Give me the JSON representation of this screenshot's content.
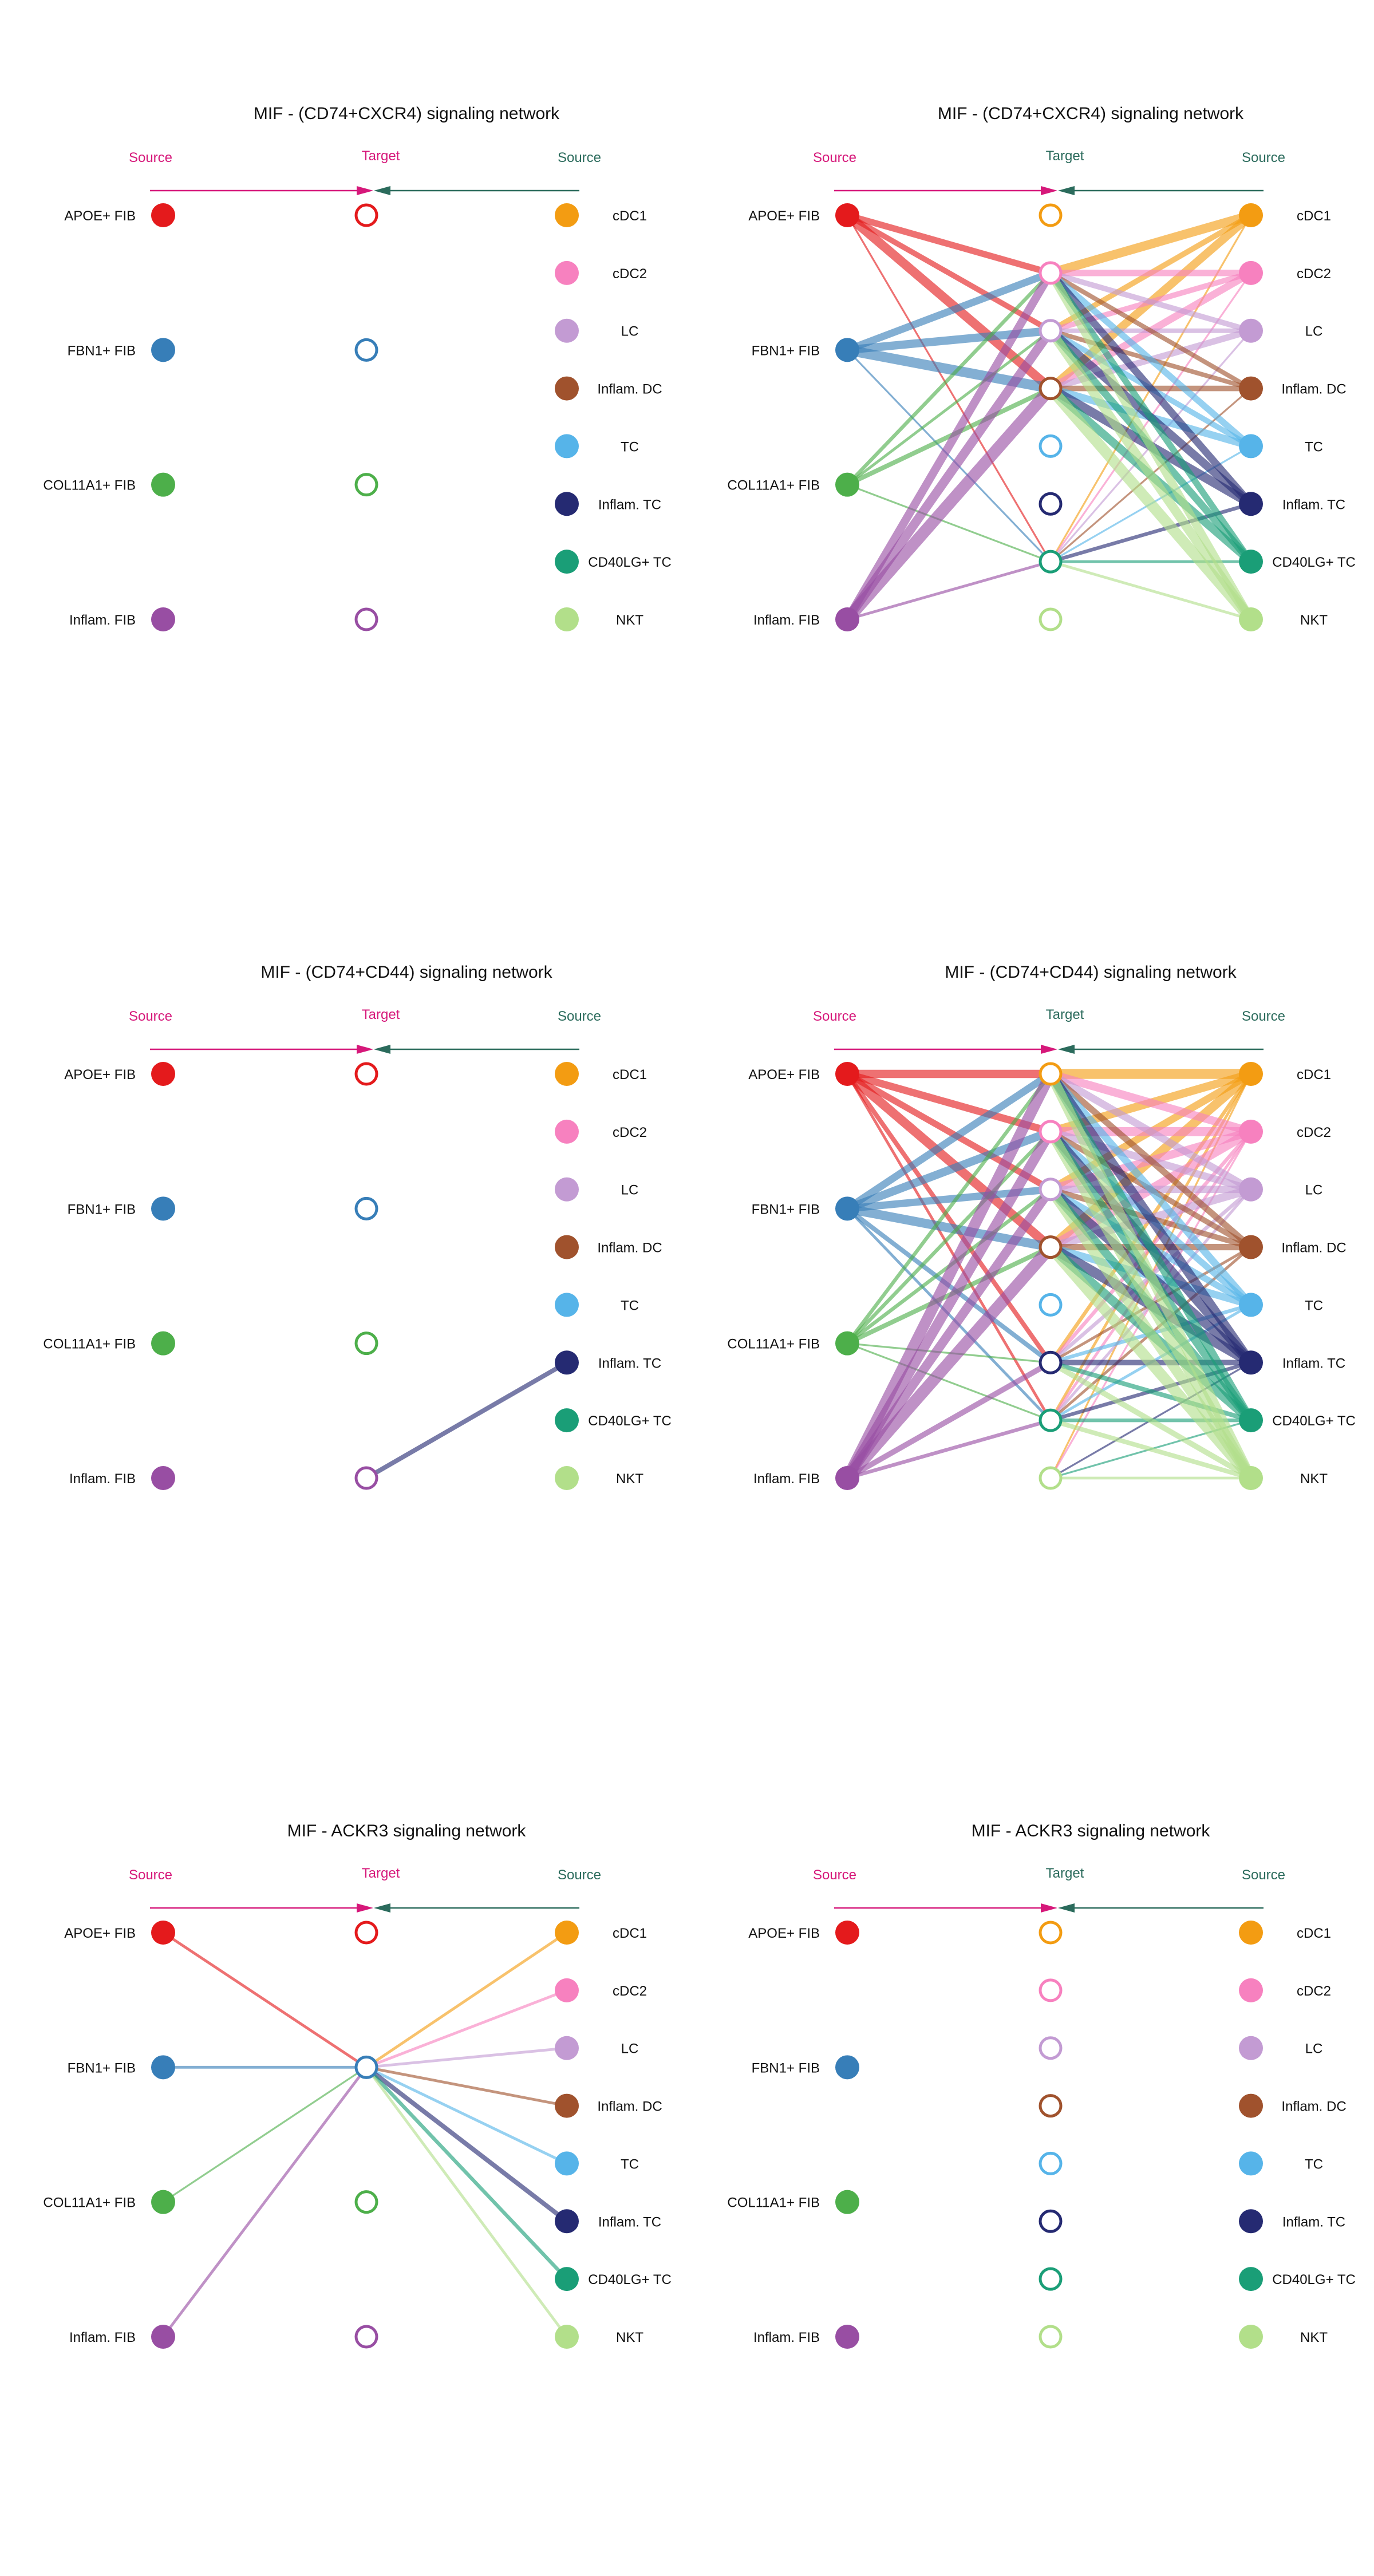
{
  "legend_labels": {
    "source": "Source",
    "target": "Target"
  },
  "colors": {
    "source_arrow": "#d6187a",
    "target_arrow": "#2b6b5c",
    "APOE+ FIB": "#e41a1c",
    "FBN1+ FIB": "#377eb8",
    "COL11A1+ FIB": "#4daf4a",
    "Inflam. FIB": "#984ea3",
    "cDC1": "#f39c12",
    "cDC2": "#f781bf",
    "LC": "#c39bd3",
    "Inflam. DC": "#a0522d",
    "TC": "#56b4e9",
    "Inflam. TC": "#252a72",
    "CD40LG+ TC": "#1a9e77",
    "NKT": "#b2df8a"
  },
  "left_nodes": [
    "APOE+ FIB",
    "FBN1+ FIB",
    "COL11A1+ FIB",
    "Inflam. FIB"
  ],
  "right_nodes": [
    "cDC1",
    "cDC2",
    "LC",
    "Inflam. DC",
    "TC",
    "Inflam. TC",
    "CD40LG+ TC",
    "NKT"
  ],
  "panels": [
    {
      "title": "MIF - (CD74+CXCR4) signaling network",
      "type": "fib",
      "edges": [
        {
          "from": "L",
          "src": 3,
          "tgt": 3,
          "w": 0
        }
      ]
    },
    {
      "title": "MIF - (CD74+CXCR4) signaling network",
      "type": "imm",
      "edges": [
        {
          "from": "L",
          "src": 0,
          "tgt": 1,
          "w": 7
        },
        {
          "from": "L",
          "src": 0,
          "tgt": 2,
          "w": 6
        },
        {
          "from": "L",
          "src": 0,
          "tgt": 3,
          "w": 10
        },
        {
          "from": "L",
          "src": 0,
          "tgt": 6,
          "w": 2
        },
        {
          "from": "L",
          "src": 1,
          "tgt": 1,
          "w": 8
        },
        {
          "from": "L",
          "src": 1,
          "tgt": 2,
          "w": 9
        },
        {
          "from": "L",
          "src": 1,
          "tgt": 3,
          "w": 11
        },
        {
          "from": "L",
          "src": 1,
          "tgt": 6,
          "w": 2
        },
        {
          "from": "L",
          "src": 2,
          "tgt": 1,
          "w": 4
        },
        {
          "from": "L",
          "src": 2,
          "tgt": 2,
          "w": 3
        },
        {
          "from": "L",
          "src": 2,
          "tgt": 3,
          "w": 5
        },
        {
          "from": "L",
          "src": 2,
          "tgt": 6,
          "w": 2
        },
        {
          "from": "L",
          "src": 3,
          "tgt": 1,
          "w": 9
        },
        {
          "from": "L",
          "src": 3,
          "tgt": 2,
          "w": 10
        },
        {
          "from": "L",
          "src": 3,
          "tgt": 3,
          "w": 13
        },
        {
          "from": "L",
          "src": 3,
          "tgt": 6,
          "w": 3
        },
        {
          "from": "R",
          "src": 0,
          "tgt": 1,
          "w": 10
        },
        {
          "from": "R",
          "src": 0,
          "tgt": 2,
          "w": 6
        },
        {
          "from": "R",
          "src": 0,
          "tgt": 3,
          "w": 9
        },
        {
          "from": "R",
          "src": 0,
          "tgt": 6,
          "w": 2
        },
        {
          "from": "R",
          "src": 1,
          "tgt": 1,
          "w": 7
        },
        {
          "from": "R",
          "src": 1,
          "tgt": 2,
          "w": 6
        },
        {
          "from": "R",
          "src": 1,
          "tgt": 3,
          "w": 8
        },
        {
          "from": "R",
          "src": 1,
          "tgt": 6,
          "w": 2
        },
        {
          "from": "R",
          "src": 2,
          "tgt": 1,
          "w": 6
        },
        {
          "from": "R",
          "src": 2,
          "tgt": 2,
          "w": 5
        },
        {
          "from": "R",
          "src": 2,
          "tgt": 3,
          "w": 7
        },
        {
          "from": "R",
          "src": 2,
          "tgt": 6,
          "w": 2
        },
        {
          "from": "R",
          "src": 3,
          "tgt": 1,
          "w": 5
        },
        {
          "from": "R",
          "src": 3,
          "tgt": 2,
          "w": 5
        },
        {
          "from": "R",
          "src": 3,
          "tgt": 3,
          "w": 6
        },
        {
          "from": "R",
          "src": 3,
          "tgt": 6,
          "w": 2
        },
        {
          "from": "R",
          "src": 4,
          "tgt": 1,
          "w": 7
        },
        {
          "from": "R",
          "src": 4,
          "tgt": 2,
          "w": 6
        },
        {
          "from": "R",
          "src": 4,
          "tgt": 3,
          "w": 8
        },
        {
          "from": "R",
          "src": 4,
          "tgt": 6,
          "w": 2
        },
        {
          "from": "R",
          "src": 5,
          "tgt": 1,
          "w": 8
        },
        {
          "from": "R",
          "src": 5,
          "tgt": 2,
          "w": 9
        },
        {
          "from": "R",
          "src": 5,
          "tgt": 3,
          "w": 10
        },
        {
          "from": "R",
          "src": 5,
          "tgt": 6,
          "w": 4
        },
        {
          "from": "R",
          "src": 6,
          "tgt": 1,
          "w": 7
        },
        {
          "from": "R",
          "src": 6,
          "tgt": 2,
          "w": 8
        },
        {
          "from": "R",
          "src": 6,
          "tgt": 3,
          "w": 9
        },
        {
          "from": "R",
          "src": 6,
          "tgt": 6,
          "w": 3
        },
        {
          "from": "R",
          "src": 7,
          "tgt": 1,
          "w": 9
        },
        {
          "from": "R",
          "src": 7,
          "tgt": 2,
          "w": 10
        },
        {
          "from": "R",
          "src": 7,
          "tgt": 3,
          "w": 12
        },
        {
          "from": "R",
          "src": 7,
          "tgt": 6,
          "w": 3
        }
      ]
    },
    {
      "title": "MIF - (CD74+CD44) signaling network",
      "type": "fib",
      "edges": [
        {
          "from": "R",
          "src": 5,
          "tgt": 3,
          "w": 5
        }
      ]
    },
    {
      "title": "MIF - (CD74+CD44) signaling network",
      "type": "imm",
      "edges": [
        {
          "from": "L",
          "src": 0,
          "tgt": 0,
          "w": 9
        },
        {
          "from": "L",
          "src": 0,
          "tgt": 1,
          "w": 8
        },
        {
          "from": "L",
          "src": 0,
          "tgt": 2,
          "w": 7
        },
        {
          "from": "L",
          "src": 0,
          "tgt": 3,
          "w": 10
        },
        {
          "from": "L",
          "src": 0,
          "tgt": 5,
          "w": 5
        },
        {
          "from": "L",
          "src": 0,
          "tgt": 6,
          "w": 3
        },
        {
          "from": "L",
          "src": 1,
          "tgt": 0,
          "w": 8
        },
        {
          "from": "L",
          "src": 1,
          "tgt": 1,
          "w": 9
        },
        {
          "from": "L",
          "src": 1,
          "tgt": 2,
          "w": 8
        },
        {
          "from": "L",
          "src": 1,
          "tgt": 3,
          "w": 10
        },
        {
          "from": "L",
          "src": 1,
          "tgt": 5,
          "w": 5
        },
        {
          "from": "L",
          "src": 1,
          "tgt": 6,
          "w": 3
        },
        {
          "from": "L",
          "src": 2,
          "tgt": 0,
          "w": 4
        },
        {
          "from": "L",
          "src": 2,
          "tgt": 1,
          "w": 4
        },
        {
          "from": "L",
          "src": 2,
          "tgt": 2,
          "w": 4
        },
        {
          "from": "L",
          "src": 2,
          "tgt": 3,
          "w": 5
        },
        {
          "from": "L",
          "src": 2,
          "tgt": 5,
          "w": 2
        },
        {
          "from": "L",
          "src": 2,
          "tgt": 6,
          "w": 2
        },
        {
          "from": "L",
          "src": 3,
          "tgt": 0,
          "w": 12
        },
        {
          "from": "L",
          "src": 3,
          "tgt": 1,
          "w": 11
        },
        {
          "from": "L",
          "src": 3,
          "tgt": 2,
          "w": 10
        },
        {
          "from": "L",
          "src": 3,
          "tgt": 3,
          "w": 13
        },
        {
          "from": "L",
          "src": 3,
          "tgt": 5,
          "w": 6
        },
        {
          "from": "L",
          "src": 3,
          "tgt": 6,
          "w": 4
        },
        {
          "from": "R",
          "src": 0,
          "tgt": 0,
          "w": 11
        },
        {
          "from": "R",
          "src": 0,
          "tgt": 1,
          "w": 9
        },
        {
          "from": "R",
          "src": 0,
          "tgt": 2,
          "w": 8
        },
        {
          "from": "R",
          "src": 0,
          "tgt": 3,
          "w": 10
        },
        {
          "from": "R",
          "src": 0,
          "tgt": 5,
          "w": 4
        },
        {
          "from": "R",
          "src": 0,
          "tgt": 6,
          "w": 3
        },
        {
          "from": "R",
          "src": 0,
          "tgt": 7,
          "w": 2
        },
        {
          "from": "R",
          "src": 1,
          "tgt": 0,
          "w": 9
        },
        {
          "from": "R",
          "src": 1,
          "tgt": 1,
          "w": 10
        },
        {
          "from": "R",
          "src": 1,
          "tgt": 2,
          "w": 9
        },
        {
          "from": "R",
          "src": 1,
          "tgt": 3,
          "w": 10
        },
        {
          "from": "R",
          "src": 1,
          "tgt": 5,
          "w": 4
        },
        {
          "from": "R",
          "src": 1,
          "tgt": 6,
          "w": 3
        },
        {
          "from": "R",
          "src": 1,
          "tgt": 7,
          "w": 2
        },
        {
          "from": "R",
          "src": 2,
          "tgt": 0,
          "w": 8
        },
        {
          "from": "R",
          "src": 2,
          "tgt": 1,
          "w": 8
        },
        {
          "from": "R",
          "src": 2,
          "tgt": 2,
          "w": 8
        },
        {
          "from": "R",
          "src": 2,
          "tgt": 3,
          "w": 9
        },
        {
          "from": "R",
          "src": 2,
          "tgt": 5,
          "w": 4
        },
        {
          "from": "R",
          "src": 2,
          "tgt": 6,
          "w": 3
        },
        {
          "from": "R",
          "src": 3,
          "tgt": 0,
          "w": 7
        },
        {
          "from": "R",
          "src": 3,
          "tgt": 1,
          "w": 6
        },
        {
          "from": "R",
          "src": 3,
          "tgt": 2,
          "w": 6
        },
        {
          "from": "R",
          "src": 3,
          "tgt": 3,
          "w": 7
        },
        {
          "from": "R",
          "src": 3,
          "tgt": 5,
          "w": 3
        },
        {
          "from": "R",
          "src": 3,
          "tgt": 6,
          "w": 3
        },
        {
          "from": "R",
          "src": 4,
          "tgt": 0,
          "w": 8
        },
        {
          "from": "R",
          "src": 4,
          "tgt": 1,
          "w": 7
        },
        {
          "from": "R",
          "src": 4,
          "tgt": 2,
          "w": 7
        },
        {
          "from": "R",
          "src": 4,
          "tgt": 3,
          "w": 8
        },
        {
          "from": "R",
          "src": 4,
          "tgt": 5,
          "w": 4
        },
        {
          "from": "R",
          "src": 4,
          "tgt": 6,
          "w": 3
        },
        {
          "from": "R",
          "src": 5,
          "tgt": 0,
          "w": 10
        },
        {
          "from": "R",
          "src": 5,
          "tgt": 1,
          "w": 10
        },
        {
          "from": "R",
          "src": 5,
          "tgt": 2,
          "w": 10
        },
        {
          "from": "R",
          "src": 5,
          "tgt": 3,
          "w": 11
        },
        {
          "from": "R",
          "src": 5,
          "tgt": 5,
          "w": 6
        },
        {
          "from": "R",
          "src": 5,
          "tgt": 6,
          "w": 4
        },
        {
          "from": "R",
          "src": 5,
          "tgt": 7,
          "w": 2
        },
        {
          "from": "R",
          "src": 6,
          "tgt": 0,
          "w": 9
        },
        {
          "from": "R",
          "src": 6,
          "tgt": 1,
          "w": 9
        },
        {
          "from": "R",
          "src": 6,
          "tgt": 2,
          "w": 9
        },
        {
          "from": "R",
          "src": 6,
          "tgt": 3,
          "w": 10
        },
        {
          "from": "R",
          "src": 6,
          "tgt": 5,
          "w": 5
        },
        {
          "from": "R",
          "src": 6,
          "tgt": 6,
          "w": 4
        },
        {
          "from": "R",
          "src": 6,
          "tgt": 7,
          "w": 2
        },
        {
          "from": "R",
          "src": 7,
          "tgt": 0,
          "w": 11
        },
        {
          "from": "R",
          "src": 7,
          "tgt": 1,
          "w": 11
        },
        {
          "from": "R",
          "src": 7,
          "tgt": 2,
          "w": 11
        },
        {
          "from": "R",
          "src": 7,
          "tgt": 3,
          "w": 12
        },
        {
          "from": "R",
          "src": 7,
          "tgt": 5,
          "w": 6
        },
        {
          "from": "R",
          "src": 7,
          "tgt": 6,
          "w": 5
        },
        {
          "from": "R",
          "src": 7,
          "tgt": 7,
          "w": 3
        }
      ]
    },
    {
      "title": "MIF - ACKR3 signaling network",
      "type": "fib",
      "edges": [
        {
          "from": "L",
          "src": 0,
          "tgt": 1,
          "w": 3
        },
        {
          "from": "L",
          "src": 1,
          "tgt": 1,
          "w": 3
        },
        {
          "from": "L",
          "src": 2,
          "tgt": 1,
          "w": 2
        },
        {
          "from": "L",
          "src": 3,
          "tgt": 1,
          "w": 3
        },
        {
          "from": "R",
          "src": 0,
          "tgt": 1,
          "w": 3
        },
        {
          "from": "R",
          "src": 1,
          "tgt": 1,
          "w": 3
        },
        {
          "from": "R",
          "src": 2,
          "tgt": 1,
          "w": 3
        },
        {
          "from": "R",
          "src": 3,
          "tgt": 1,
          "w": 3
        },
        {
          "from": "R",
          "src": 4,
          "tgt": 1,
          "w": 3
        },
        {
          "from": "R",
          "src": 5,
          "tgt": 1,
          "w": 5
        },
        {
          "from": "R",
          "src": 6,
          "tgt": 1,
          "w": 4
        },
        {
          "from": "R",
          "src": 7,
          "tgt": 1,
          "w": 3
        }
      ]
    },
    {
      "title": "MIF - ACKR3 signaling network",
      "type": "imm",
      "edges": []
    }
  ]
}
